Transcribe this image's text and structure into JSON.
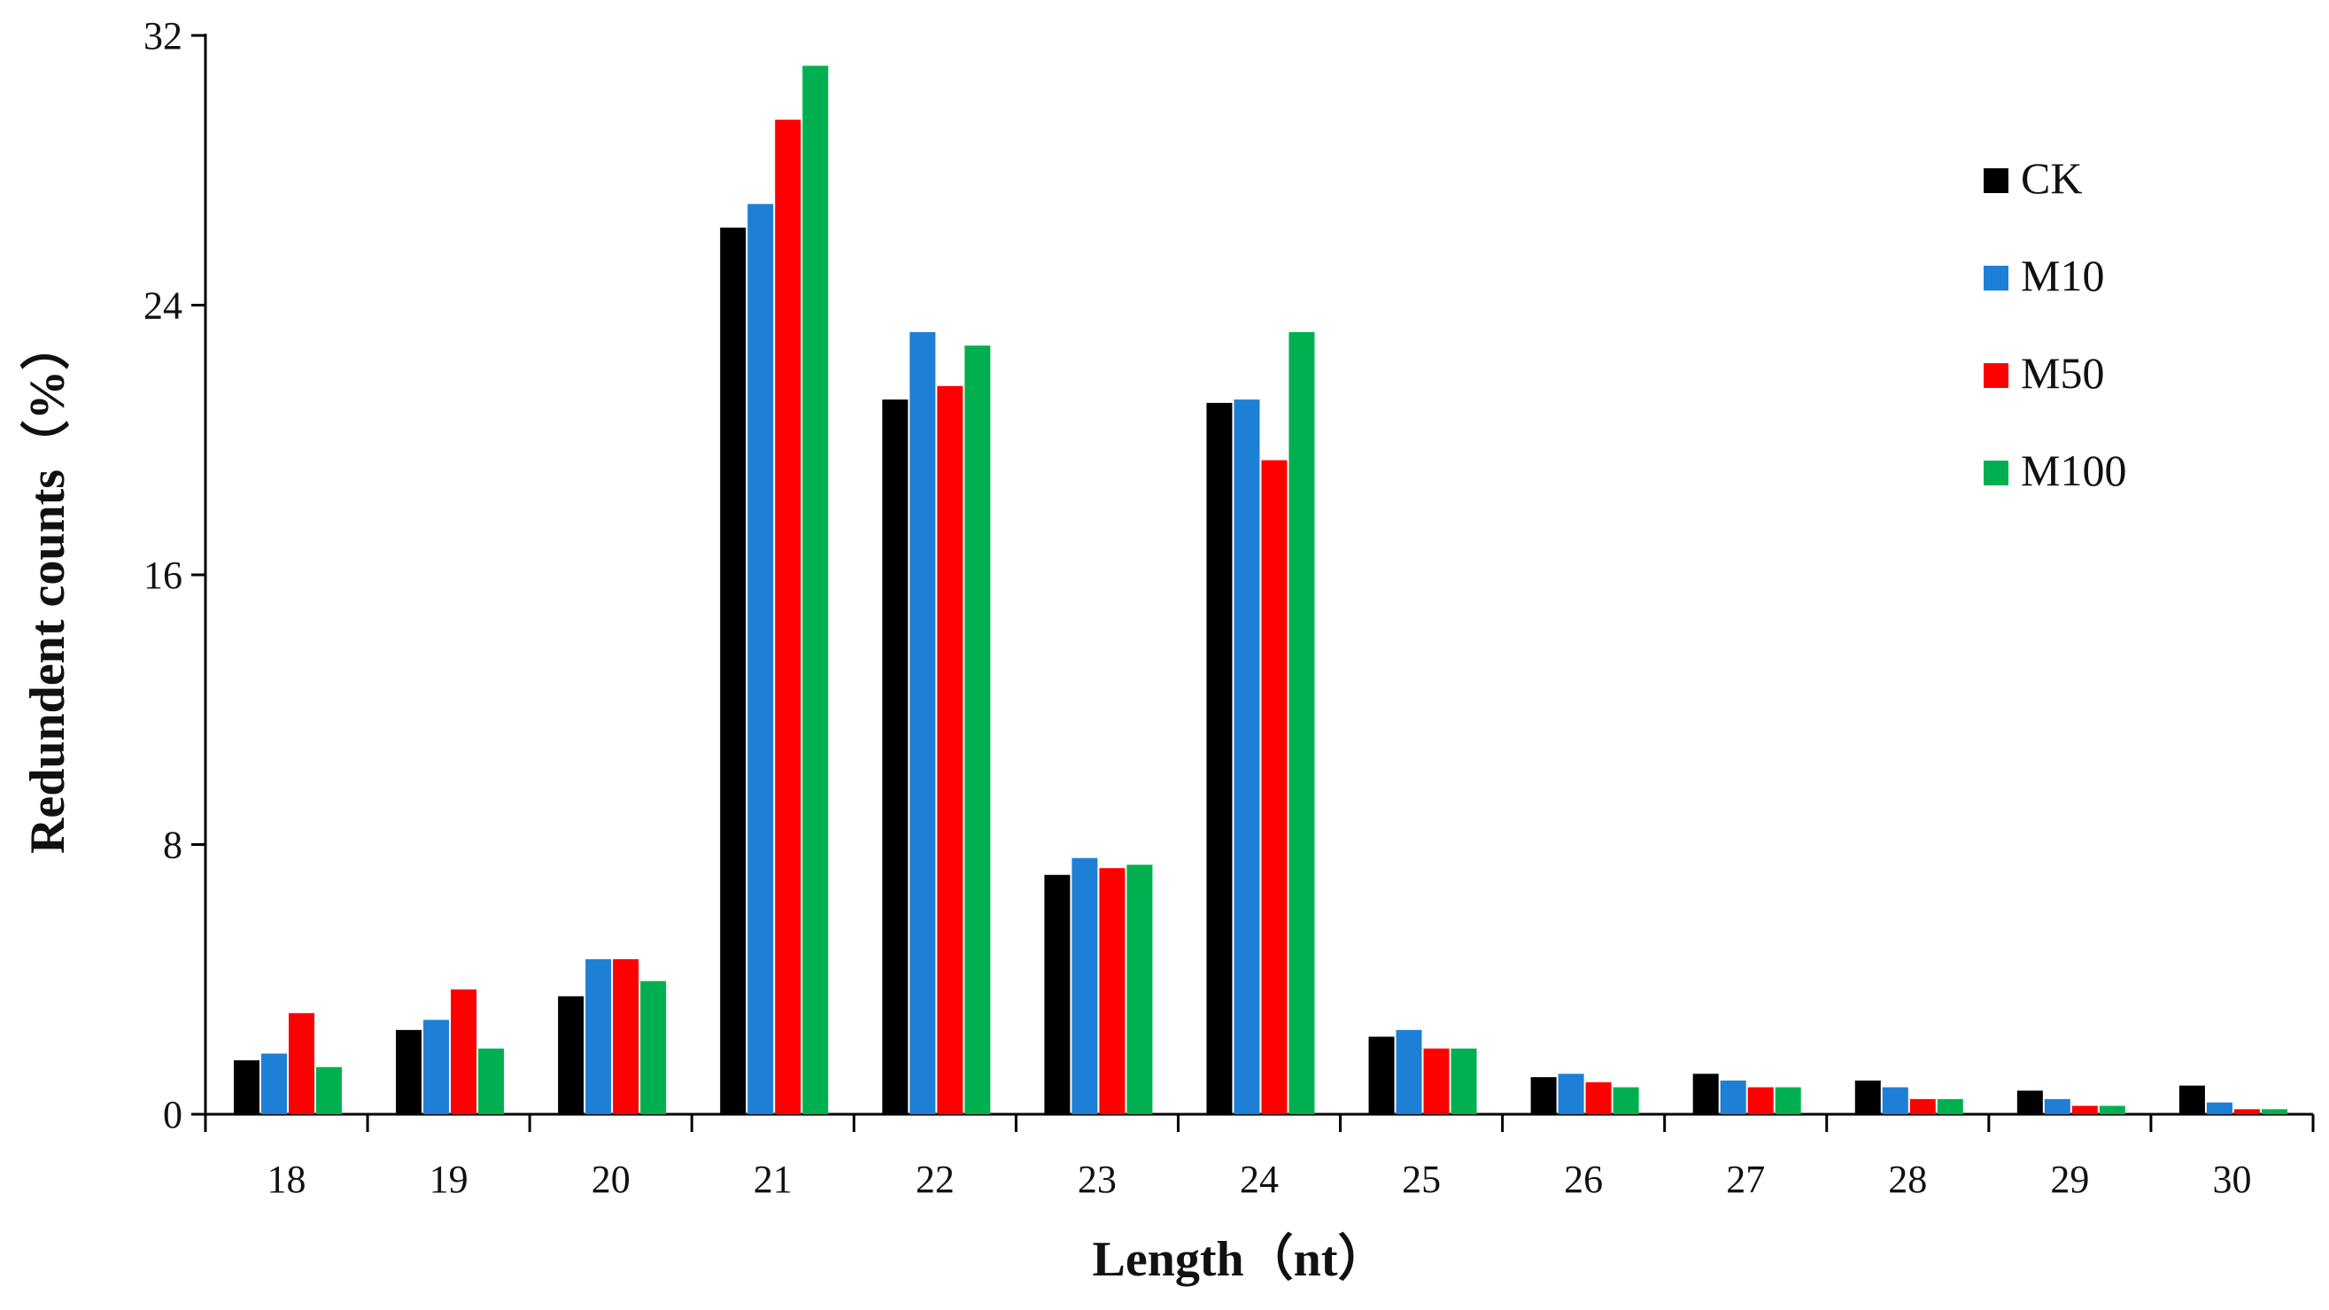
{
  "chart_data": {
    "type": "bar",
    "title": "",
    "xlabel": "Length（nt）",
    "ylabel": "Redundent counts（%）",
    "ylim": [
      0,
      32
    ],
    "yticks": [
      0,
      8,
      16,
      24,
      32
    ],
    "grid": false,
    "legend_position": "top-right",
    "categories": [
      "18",
      "19",
      "20",
      "21",
      "22",
      "23",
      "24",
      "25",
      "26",
      "27",
      "28",
      "29",
      "30"
    ],
    "series": [
      {
        "name": "CK",
        "color": "#000000",
        "values": [
          1.6,
          2.5,
          3.5,
          26.3,
          21.2,
          7.1,
          21.1,
          2.3,
          1.1,
          1.2,
          1.0,
          0.7,
          0.85
        ]
      },
      {
        "name": "M10",
        "color": "#1E7FD6",
        "values": [
          1.8,
          2.8,
          4.6,
          27.0,
          23.2,
          7.6,
          21.2,
          2.5,
          1.2,
          1.0,
          0.8,
          0.45,
          0.35
        ]
      },
      {
        "name": "M50",
        "color": "#FF0000",
        "values": [
          3.0,
          3.7,
          4.6,
          29.5,
          21.6,
          7.3,
          19.4,
          1.95,
          0.95,
          0.8,
          0.45,
          0.25,
          0.15
        ]
      },
      {
        "name": "M100",
        "color": "#00B050",
        "values": [
          1.4,
          1.95,
          3.95,
          31.1,
          22.8,
          7.4,
          23.2,
          1.95,
          0.8,
          0.8,
          0.45,
          0.25,
          0.15
        ]
      }
    ]
  }
}
